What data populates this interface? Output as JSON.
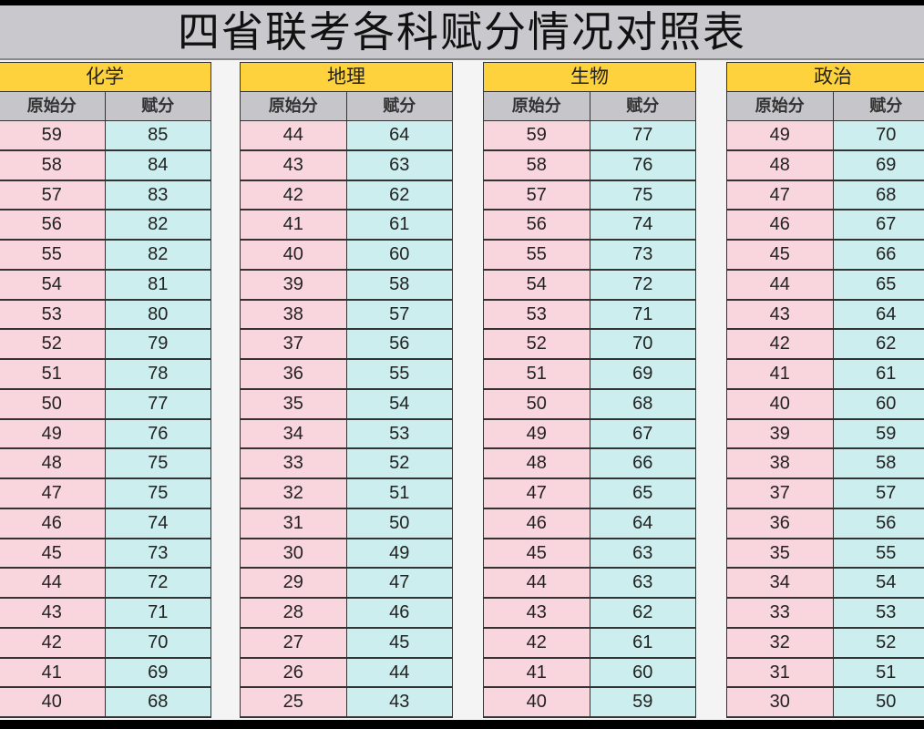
{
  "title": "四省联考各科赋分情况对照表",
  "column_headers": {
    "raw": "原始分",
    "scaled": "赋分"
  },
  "colors": {
    "subject_header": "#fdd23c",
    "column_header": "#c6c5ca",
    "raw_cell": "#f9d5dd",
    "scaled_cell": "#cdeeee"
  },
  "subjects": [
    {
      "name": "化学",
      "raw": [
        59,
        58,
        57,
        56,
        55,
        54,
        53,
        52,
        51,
        50,
        49,
        48,
        47,
        46,
        45,
        44,
        43,
        42,
        41,
        40
      ],
      "scaled": [
        85,
        84,
        83,
        82,
        82,
        81,
        80,
        79,
        78,
        77,
        76,
        75,
        75,
        74,
        73,
        72,
        71,
        70,
        69,
        68
      ]
    },
    {
      "name": "地理",
      "raw": [
        44,
        43,
        42,
        41,
        40,
        39,
        38,
        37,
        36,
        35,
        34,
        33,
        32,
        31,
        30,
        29,
        28,
        27,
        26,
        25
      ],
      "scaled": [
        64,
        63,
        62,
        61,
        60,
        58,
        57,
        56,
        55,
        54,
        53,
        52,
        51,
        50,
        49,
        47,
        46,
        45,
        44,
        43
      ]
    },
    {
      "name": "生物",
      "raw": [
        59,
        58,
        57,
        56,
        55,
        54,
        53,
        52,
        51,
        50,
        49,
        48,
        47,
        46,
        45,
        44,
        43,
        42,
        41,
        40
      ],
      "scaled": [
        77,
        76,
        75,
        74,
        73,
        72,
        71,
        70,
        69,
        68,
        67,
        66,
        65,
        64,
        63,
        63,
        62,
        61,
        60,
        59
      ]
    },
    {
      "name": "政治",
      "raw": [
        49,
        48,
        47,
        46,
        45,
        44,
        43,
        42,
        41,
        40,
        39,
        38,
        37,
        36,
        35,
        34,
        33,
        32,
        31,
        30
      ],
      "scaled": [
        70,
        69,
        68,
        67,
        66,
        65,
        64,
        62,
        61,
        60,
        59,
        58,
        57,
        56,
        55,
        54,
        53,
        52,
        51,
        50
      ]
    }
  ]
}
